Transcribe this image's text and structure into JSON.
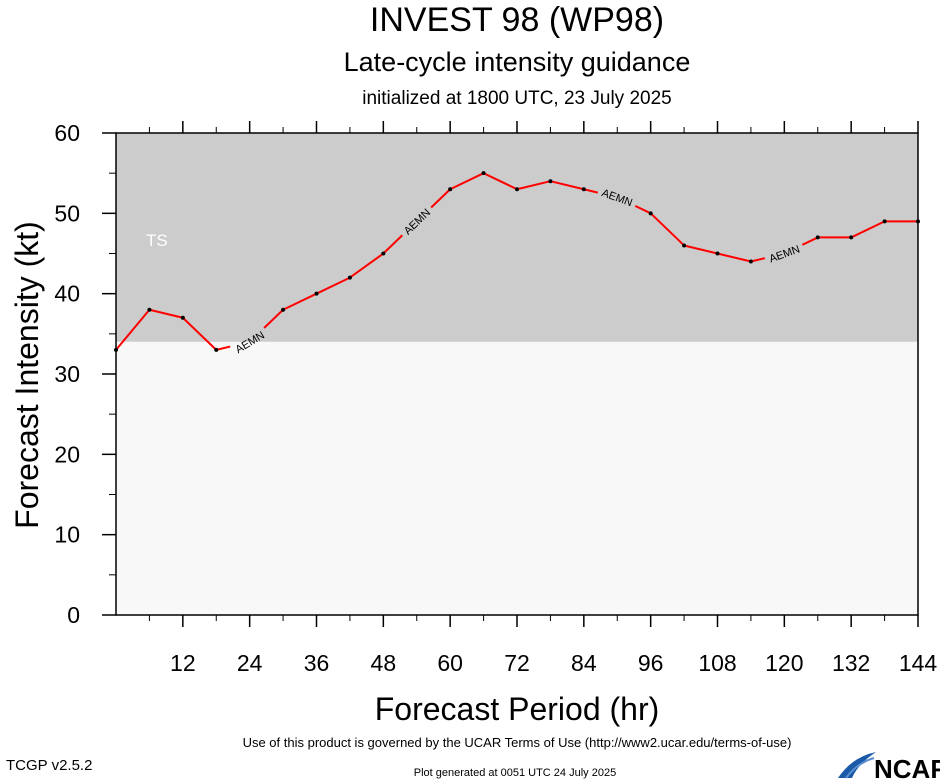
{
  "header": {
    "title": "INVEST 98 (WP98)",
    "subtitle": "Late-cycle intensity guidance",
    "initialized": "initialized at 1800 UTC, 23 July 2025"
  },
  "chart_data": {
    "type": "line",
    "xlabel": "Forecast Period (hr)",
    "ylabel": "Forecast Intensity (kt)",
    "xlim": [
      0,
      144
    ],
    "ylim": [
      0,
      60
    ],
    "xticks": [
      12,
      24,
      36,
      48,
      60,
      72,
      84,
      96,
      108,
      120,
      132,
      144
    ],
    "yticks": [
      0,
      10,
      20,
      30,
      40,
      50,
      60
    ],
    "grid": false,
    "bands": [
      {
        "label": "TS",
        "from": 34,
        "to": 60,
        "color": "#cccccc"
      },
      {
        "label": "",
        "from": 0,
        "to": 34,
        "color": "#f8f8f8"
      }
    ],
    "series": [
      {
        "name": "AEMN",
        "color": "#ff0000",
        "x": [
          0,
          6,
          12,
          18,
          24,
          30,
          36,
          42,
          48,
          54,
          60,
          66,
          72,
          78,
          84,
          90,
          96,
          102,
          108,
          114,
          120,
          126,
          132,
          138,
          144
        ],
        "y": [
          33,
          38,
          37,
          33,
          34,
          38,
          40,
          42,
          45,
          49,
          53,
          55,
          53,
          54,
          53,
          52,
          50,
          46,
          45,
          44,
          45,
          47,
          47,
          49,
          49
        ],
        "label_x": [
          24,
          54,
          90,
          120
        ]
      }
    ]
  },
  "footer": {
    "terms": "Use of this product is governed by the UCAR Terms of Use (http://www2.ucar.edu/terms-of-use)",
    "version": "TCGP v2.5.2",
    "generated": "Plot generated at 0051 UTC   24 July 2025",
    "logo_text": "NCAR"
  }
}
